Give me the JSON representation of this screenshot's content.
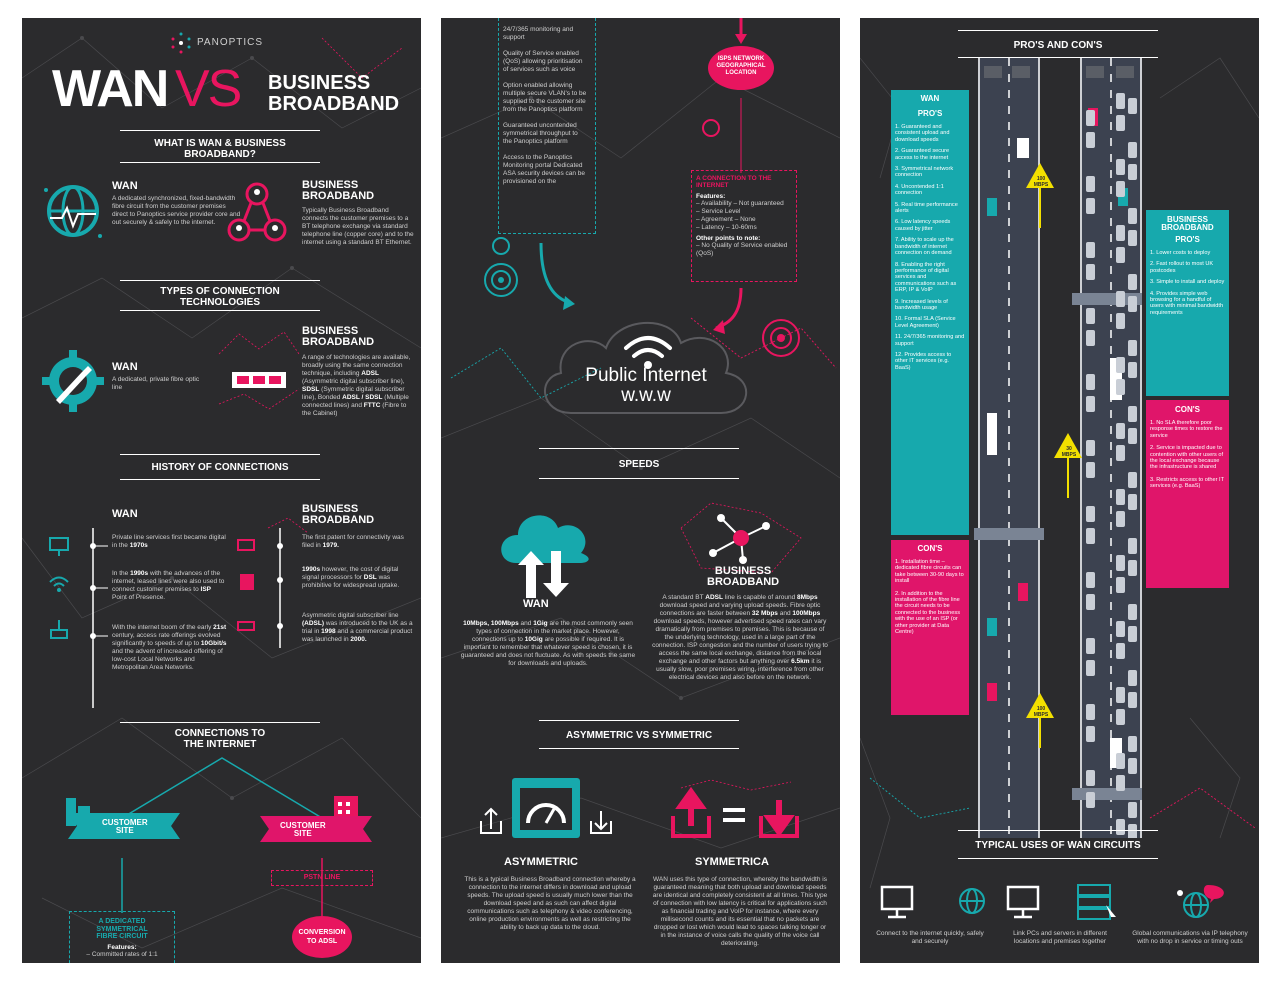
{
  "colors": {
    "teal": "#17a9ad",
    "pink": "#e8155f",
    "panel": "#2b2b2d",
    "yellow": "#f3e000"
  },
  "p1": {
    "logo": "PANOPTICS",
    "title_wan": "WAN",
    "title_vs": "VS",
    "title_bb1": "BUSINESS",
    "title_bb2": "BROADBAND",
    "what_title1": "WHAT IS WAN & BUSINESS",
    "what_title2": "BROADBAND?",
    "wan_h": "WAN",
    "wan_text": "A dedicated synchronized, fixed-bandwidth fibre circuit from the customer premises direct to Panoptics service provider core and out securely & safely to the internet.",
    "bb_h1": "BUSINESS",
    "bb_h2": "BROADBAND",
    "bb_text": "Typically Business Broadband connects the customer premises to a BT telephone exchange via standard telephone line (copper core) and to the internet using a standard BT Ethernet.",
    "types_title1": "TYPES OF CONNECTION",
    "types_title2": "TECHNOLOGIES",
    "types_wan_h": "WAN",
    "types_wan_text": "A dedicated, private fibre optic line",
    "types_bb_text_a": "A range of technologies are available, broadly using the same connection technique, including ",
    "types_bb_adsl": "ADSL",
    "types_bb_text_b": " (Asymmetric digital subscriber line), ",
    "types_bb_sdsl": "SDSL",
    "types_bb_text_c": " (Symmetric digital subscriber line), Bonded ",
    "types_bb_adsl2": "ADSL / SDSL",
    "types_bb_text_d": " (Multiple connected lines) and ",
    "types_bb_fttc": "FTTC",
    "types_bb_text_e": " (Fibre to the Cabinet)",
    "history_title": "HISTORY OF CONNECTIONS",
    "hist_wan_h": "WAN",
    "hist_wan_1a": "Private line services first became digital in the ",
    "hist_wan_1b": "1970s",
    "hist_wan_2a": "In the ",
    "hist_wan_2b": "1990s",
    "hist_wan_2c": " with the advances of the internet, leased lines were also used to connect customer premises to ",
    "hist_wan_2d": "ISP",
    "hist_wan_2e": " Point of Presence.",
    "hist_wan_3a": "With the internet boom of the early ",
    "hist_wan_3b": "21st",
    "hist_wan_3c": " century, access rate offerings evolved significantly to speeds of up to ",
    "hist_wan_3d": "10Gbit/s",
    "hist_wan_3e": " and the advent of increased offering of low-cost Local Networks and Metropolitan Area Networks.",
    "hist_bb_1a": "The first patent for connectivity was filed in ",
    "hist_bb_1b": "1979.",
    "hist_bb_2a": "1990s",
    "hist_bb_2b": " however, the cost of digital signal processors for ",
    "hist_bb_2c": "DSL",
    "hist_bb_2d": " was prohibitive for widespread uptake.",
    "hist_bb_3a": "Asymmetric digital subscriber line ",
    "hist_bb_3b": "(ADSL)",
    "hist_bb_3c": " was introduced to the UK as a trial in ",
    "hist_bb_3d": "1998",
    "hist_bb_3e": " and a commercial product was launched in ",
    "hist_bb_3f": "2000.",
    "conn_title1": "CONNECTIONS TO",
    "conn_title2": "THE INTERNET",
    "cust1": "CUSTOMER",
    "cust2": "SITE",
    "pstn": "PSTN LINE",
    "dedicated1": "A DEDICATED",
    "dedicated2": "SYMMETRICAL",
    "dedicated3": "FIBRE CIRCUIT",
    "features": "Features:",
    "feature_1": "– Committed rates of 1:1",
    "conv1": "CONVERSION",
    "conv2": "TO ADSL"
  },
  "p2": {
    "list": [
      "24/7/365 monitoring and support",
      "Quality of Service enabled (QoS) allowing prioritisation of services such as voice",
      "Option enabled allowing multiple secure VLAN's to be supplied to the customer site from the Panoptics platform",
      "Guaranteed uncontended symmetrical throughput to the Panoptics platform",
      "Access to the Panoptics Monitoring portal Dedicated ASA security devices can be provisioned on the"
    ],
    "isp1": "ISPS NETWORK",
    "isp2": "GEOGRAPHICAL",
    "isp3": "LOCATION",
    "conn_box_title1": "A CONNECTION TO THE",
    "conn_box_title2": "INTERNET",
    "conn_features": "Features:",
    "conn_f1": "– Availability – Not guaranteed",
    "conn_f2": "– Service Level",
    "conn_f3": "– Agreement – None",
    "conn_f4": "– Latency – 10-60ms",
    "other_points": "Other points to note:",
    "other_1": "– No Quality of Service enabled (QoS)",
    "public1": "Public Internet",
    "public2": "w.w.w",
    "speeds": "SPEEDS",
    "wan": "WAN",
    "bb1": "BUSINESS",
    "bb2": "BROADBAND",
    "wan_speed_a": "10Mbps, 100Mbps",
    "wan_speed_b": " and ",
    "wan_speed_c": "1Gig",
    "wan_speed_d": " are the most commonly seen types of connection in the market place. However, connections up to ",
    "wan_speed_e": "10Gig",
    "wan_speed_f": " are possible if required. It is important to remember that whatever speed is chosen, it is guaranteed and does not fluctuate. As with speeds the same for downloads and uploads.",
    "bb_speed_a": "A standard BT ",
    "bb_speed_b": "ADSL",
    "bb_speed_c": " line is capable of around ",
    "bb_speed_d": "8Mbps",
    "bb_speed_e": " download speed and varying upload speeds. Fibre optic connections are faster between ",
    "bb_speed_f": "32 Mbps",
    "bb_speed_g": " and ",
    "bb_speed_h": "100Mbps",
    "bb_speed_i": " download speeds, however advertised speed rates can vary dramatically from premises to premises. This is because of the underlying technology, used in a large part of the connection. ISP congestion and the number of users trying to access the same local exchange, distance from the local exchange and other factors but anything over ",
    "bb_speed_j": "6.5km",
    "bb_speed_k": " it is usually slow, poor premises wiring, interference from other electrical devices and also before on the network.",
    "asym_title": "ASYMMETRIC VS SYMMETRIC",
    "asym": "ASYMMETRIC",
    "sym": "SYMMETRICA",
    "asym_text": "This is a typical Business Broadband connection whereby a connection to the internet differs in download and upload speeds. The upload speed is usually much lower than the download speed and as such can affect digital communications such as telephony & video conferencing, online production environments as well as restricting the ability to back up data to the cloud.",
    "sym_text": "WAN uses this type of connection, whereby the bandwidth is guaranteed meaning that both upload and download speeds are identical and completely consistent at all times. This type of connection with low latency is critical for applications such as financial trading and VoIP for instance, where every millisecond counts and its essential that no packets are dropped or lost which would lead to spaces talking longer or in the instance of voice calls the quality of the voice call deteriorating."
  },
  "p3": {
    "title": "PRO'S AND CON'S",
    "wan_h": "WAN",
    "pros_h": "PRO'S",
    "wan_pros": [
      "1. Guaranteed and consistent upload and download speeds",
      "2. Guaranteed secure access to the internet",
      "3. Symmetrical network connection",
      "4. Uncontended 1:1 connection",
      "5. Real time performance alerts",
      "6. Low latency speeds caused by jitter",
      "7. Ability to scale up the bandwidth of internet connection on demand",
      "8. Enabling the right performance of digital services and communications such as ERP, IP & VoIP",
      "9. Increased levels of bandwidth usage",
      "10. Formal SLA (Service Level Agreement)",
      "11. 24/7/365 monitoring and support",
      "12. Provides access to other IT services (e.g. BaaS)"
    ],
    "cons_h": "CON'S",
    "wan_cons": [
      "1. Installation time – dedicated fibre circuits can take between 30-90 days to install",
      "2. In addition to the installation of the fibre line the circuit needs to be connected to the business with the use of an ISP (or other provider at Data Centre)"
    ],
    "bb_h1": "BUSINESS",
    "bb_h2": "BROADBAND",
    "bb_pros": [
      "1. Lower costs to deploy",
      "2. Fast rollout to most UK postcodes",
      "3. Simple to install and deploy",
      "4. Provides simple web browsing for a handful of users with minimal bandwidth requirements"
    ],
    "bb_cons": [
      "1. No SLA therefore poor response times to restore the service",
      "2. Service is impacted due to contention with other users of the local exchange because the infrastructure is shared",
      "3. Restricts access to other IT services (e.g. BaaS)"
    ],
    "speed_100": "100",
    "speed_30": "30",
    "mbps": "MBPS",
    "uses_title": "TYPICAL USES OF WAN CIRCUITS",
    "use_1": "Connect to the internet quickly, safely and securely",
    "use_2": "Link PCs and servers in different locations and premises together",
    "use_3": "Global communications via IP telephony with no drop in service or timing outs"
  }
}
